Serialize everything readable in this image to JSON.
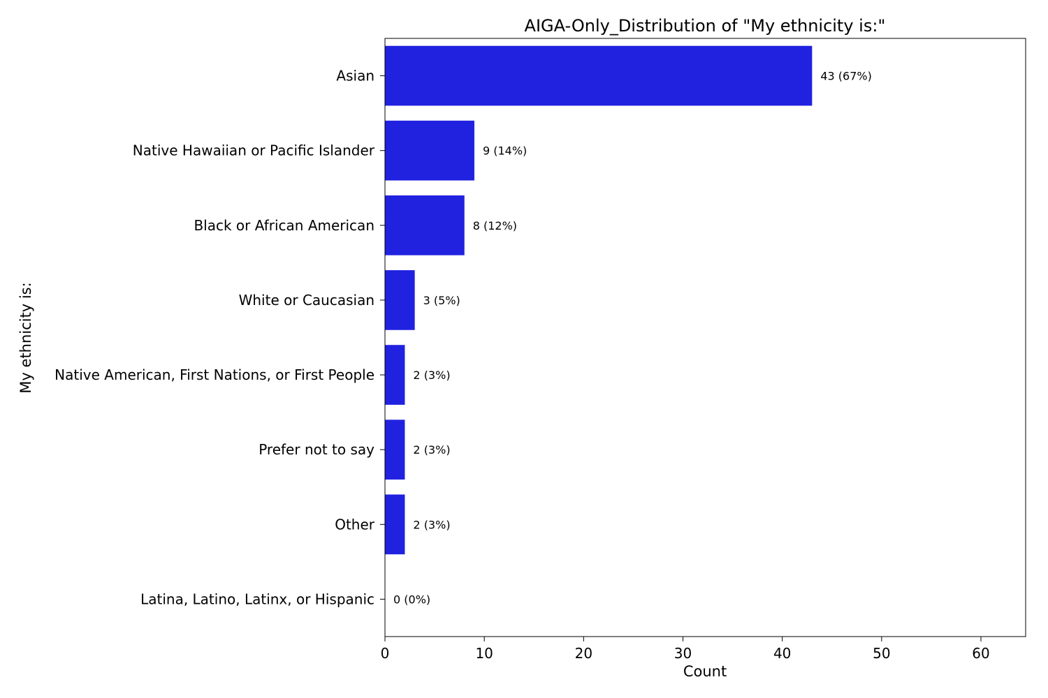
{
  "chart_data": {
    "type": "bar",
    "orientation": "horizontal",
    "title": "AIGA-Only_Distribution of \"My ethnicity is:\"",
    "xlabel": "Count",
    "ylabel": "My ethnicity is:",
    "categories": [
      "Asian",
      "Native Hawaiian or Pacific Islander",
      "Black or African American",
      "White or Caucasian",
      "Native American, First Nations, or First People",
      "Prefer not to say",
      "Other",
      "Latina, Latino, Latinx, or Hispanic"
    ],
    "values": [
      43,
      9,
      8,
      3,
      2,
      2,
      2,
      0
    ],
    "data_labels": [
      "43 (67%)",
      "9 (14%)",
      "8 (12%)",
      "3 (5%)",
      "2 (3%)",
      "2 (3%)",
      "2 (3%)",
      "0 (0%)"
    ],
    "xlim": [
      0,
      64.5
    ],
    "xticks": [
      0,
      10,
      20,
      30,
      40,
      50,
      60
    ],
    "grid": false,
    "legend": "none",
    "colors": {
      "bar": "#2121e0",
      "text": "#000000",
      "axis": "#000000",
      "background": "#ffffff"
    }
  }
}
